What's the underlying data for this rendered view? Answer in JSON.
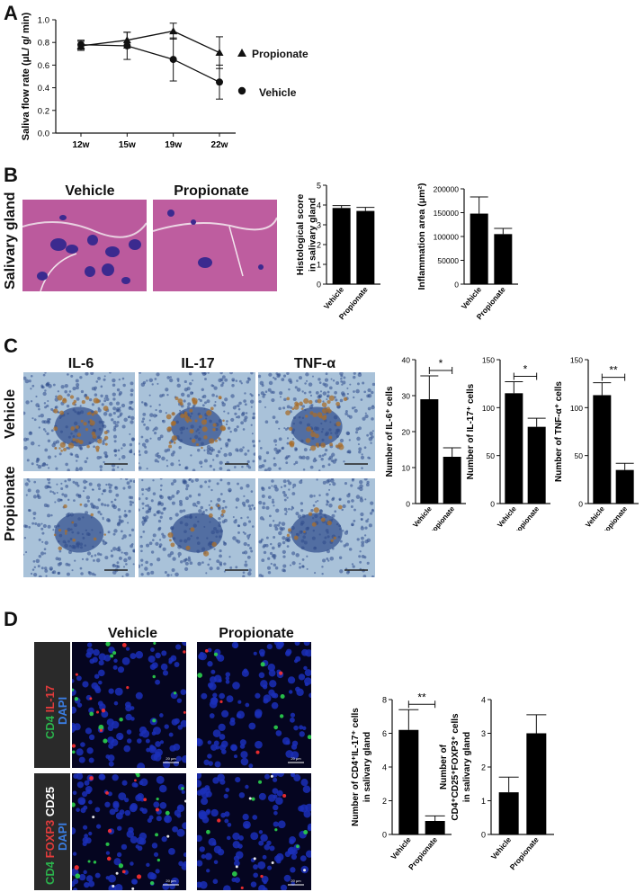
{
  "panels": {
    "A": "A",
    "B": "B",
    "C": "C",
    "D": "D"
  },
  "panelA": {
    "ylabel": "Saliva flow rate (μL/ g/ min)",
    "legend": [
      {
        "name": "Propionate",
        "marker": "triangle"
      },
      {
        "name": "Vehicle",
        "marker": "circle"
      }
    ]
  },
  "panelB": {
    "row_label": "Salivary gland",
    "image_titles": [
      "Vehicle",
      "Propionate"
    ],
    "stain_colors": {
      "background": "#c94f9a",
      "infiltrate": "#3b2a8f"
    }
  },
  "panelC": {
    "column_titles": [
      "IL-6",
      "IL-17",
      "TNF-α"
    ],
    "row_labels": [
      "Vehicle",
      "Propionate"
    ],
    "stain_colors": {
      "background": "#a9c2d9",
      "nuclei": "#2e4a8a",
      "brown": "#a86d2b"
    }
  },
  "panelD": {
    "column_titles": [
      "Vehicle",
      "Propionate"
    ],
    "row1_channels": [
      {
        "text": "CD4",
        "color": "#2bb24c"
      },
      {
        "text": "IL-17",
        "color": "#e23b3b"
      },
      {
        "text": "DAPI",
        "color": "#3b7de2"
      }
    ],
    "row2_channels": [
      {
        "text": "CD4",
        "color": "#2bb24c"
      },
      {
        "text": "FOXP3",
        "color": "#e23b3b"
      },
      {
        "text": "CD25",
        "color": "#ffffff"
      },
      {
        "text": "DAPI",
        "color": "#3b7de2"
      }
    ],
    "scale_bar": "20 μm"
  },
  "chart_data": [
    {
      "id": "A",
      "type": "line",
      "x": [
        "12w",
        "15w",
        "19w",
        "22w"
      ],
      "ylabel": "Saliva flow rate (μL/ g/ min)",
      "ylim": [
        0,
        1.0
      ],
      "yticks": [
        "0.0",
        "0.2",
        "0.4",
        "0.6",
        "0.8",
        "1.0"
      ],
      "series": [
        {
          "name": "Propionate",
          "values": [
            0.77,
            0.82,
            0.9,
            0.71
          ],
          "err": [
            0.04,
            0.07,
            0.07,
            0.14
          ]
        },
        {
          "name": "Vehicle",
          "values": [
            0.78,
            0.77,
            0.65,
            0.45
          ],
          "err": [
            0.04,
            0.12,
            0.19,
            0.15
          ]
        }
      ]
    },
    {
      "id": "B1",
      "type": "bar",
      "categories": [
        "Vehicle",
        "Propionate"
      ],
      "values": [
        3.85,
        3.7
      ],
      "err": [
        0.12,
        0.18
      ],
      "ylabel": "Histological score in salivary gland",
      "ylim": [
        0,
        5
      ],
      "yticks": [
        "0",
        "1",
        "2",
        "3",
        "4",
        "5"
      ]
    },
    {
      "id": "B2",
      "type": "bar",
      "categories": [
        "Vehicle",
        "Propionate"
      ],
      "values": [
        148000,
        105000
      ],
      "err": [
        35000,
        12000
      ],
      "ylabel": "Inflammation area (μm²)",
      "ylim": [
        0,
        200000
      ],
      "yticks": [
        "0",
        "50000",
        "100000",
        "150000",
        "200000"
      ]
    },
    {
      "id": "C1",
      "type": "bar",
      "categories": [
        "Vehicle",
        "Propionate"
      ],
      "values": [
        29,
        13
      ],
      "err": [
        6.5,
        2.5
      ],
      "ylabel": "Number of IL-6⁺ cells",
      "ylim": [
        0,
        40
      ],
      "yticks": [
        "0",
        "10",
        "20",
        "30",
        "40"
      ],
      "significance": "*"
    },
    {
      "id": "C2",
      "type": "bar",
      "categories": [
        "Vehicle",
        "Propionate"
      ],
      "values": [
        115,
        80
      ],
      "err": [
        12,
        9
      ],
      "ylabel": "Number of IL-17⁺ cells",
      "ylim": [
        0,
        150
      ],
      "yticks": [
        "0",
        "50",
        "100",
        "150"
      ],
      "significance": "*"
    },
    {
      "id": "C3",
      "type": "bar",
      "categories": [
        "Vehicle",
        "Propionate"
      ],
      "values": [
        113,
        35
      ],
      "err": [
        13,
        7
      ],
      "ylabel": "Number of TNF-α⁺ cells",
      "ylim": [
        0,
        150
      ],
      "yticks": [
        "0",
        "50",
        "100",
        "150"
      ],
      "significance": "**"
    },
    {
      "id": "D1",
      "type": "bar",
      "categories": [
        "Vehicle",
        "Propionate"
      ],
      "values": [
        6.2,
        0.8
      ],
      "err": [
        1.2,
        0.3
      ],
      "ylabel": "Number of CD4⁺IL-17⁺ cells in salivary gland",
      "ylim": [
        0,
        8
      ],
      "yticks": [
        "0",
        "2",
        "4",
        "6",
        "8"
      ],
      "significance": "**"
    },
    {
      "id": "D2",
      "type": "bar",
      "categories": [
        "Vehicle",
        "Propionate"
      ],
      "values": [
        1.25,
        3.0
      ],
      "err": [
        0.45,
        0.55
      ],
      "ylabel": "Number of CD4⁺CD25⁺FOXP3⁺ cells in salivary gland",
      "ylim": [
        0,
        4
      ],
      "yticks": [
        "0",
        "1",
        "2",
        "3",
        "4"
      ]
    }
  ]
}
